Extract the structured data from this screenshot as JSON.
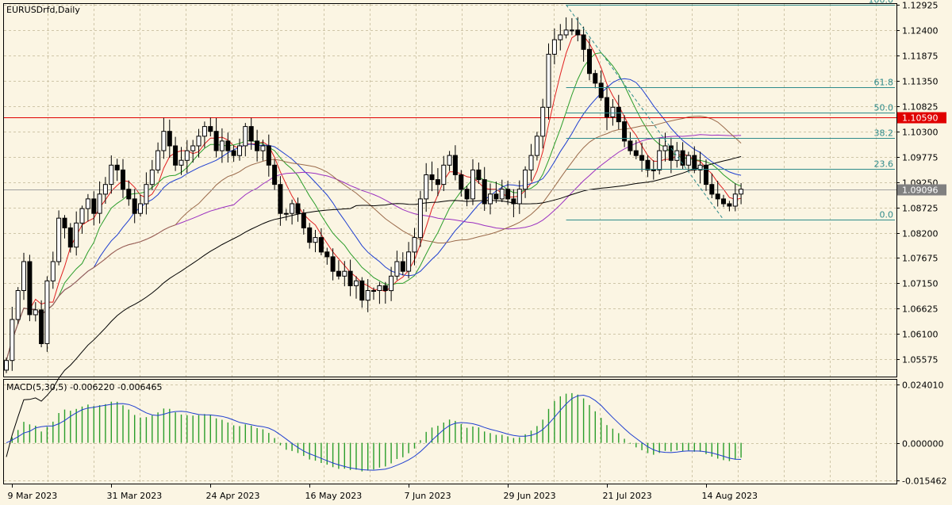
{
  "symbol_label": "EURUSDrfd,Daily",
  "macd_label": "MACD(5,30,5) -0.006220 -0.006465",
  "colors": {
    "background": "#fbf5e3",
    "grid": "#cfc6a8",
    "candle": "#000000",
    "resistance": "#e00000",
    "fib": "#2e8b8b",
    "ma_red": "#e02020",
    "ma_green": "#2a9d2a",
    "ma_blue": "#1f3fd0",
    "ma_purple": "#9a2fc0",
    "ma_brown": "#9a6a4a",
    "ma_black": "#000000",
    "macd_hist": "#2a9d2a",
    "macd_signal": "#1f3fd0",
    "current_tag": "#808080"
  },
  "chart_data": [
    {
      "type": "candlestick",
      "symbol": "EURUSDrfd",
      "timeframe": "Daily",
      "ylim": [
        1.0525,
        1.12925
      ],
      "y_ticks": [
        "1.12925",
        "1.12400",
        "1.11875",
        "1.11350",
        "1.10825",
        "1.10300",
        "1.09775",
        "1.09250",
        "1.08725",
        "1.08200",
        "1.07675",
        "1.07150",
        "1.06625",
        "1.06100",
        "1.05575"
      ],
      "x_ticks": [
        "9 Mar 2023",
        "31 Mar 2023",
        "24 Apr 2023",
        "16 May 2023",
        "7 Jun 2023",
        "29 Jun 2023",
        "21 Jul 2023",
        "14 Aug 2023"
      ],
      "x_tick_index": [
        1,
        18,
        35,
        52,
        69,
        86,
        103,
        120
      ],
      "closes": [
        1.0555,
        1.064,
        1.07,
        1.076,
        1.065,
        1.066,
        1.059,
        1.072,
        1.076,
        1.085,
        1.083,
        1.079,
        1.084,
        1.087,
        1.089,
        1.086,
        1.09,
        1.092,
        1.096,
        1.095,
        1.091,
        1.089,
        1.086,
        1.088,
        1.092,
        1.095,
        1.099,
        1.103,
        1.1,
        1.096,
        1.097,
        1.099,
        1.1,
        1.102,
        1.104,
        1.103,
        1.099,
        1.101,
        1.099,
        1.098,
        1.1,
        1.104,
        1.101,
        1.099,
        1.1,
        1.096,
        1.092,
        1.086,
        1.086,
        1.088,
        1.086,
        1.083,
        1.08,
        1.081,
        1.078,
        1.077,
        1.074,
        1.073,
        1.074,
        1.071,
        1.072,
        1.068,
        1.07,
        1.07,
        1.071,
        1.07,
        1.073,
        1.076,
        1.074,
        1.078,
        1.081,
        1.089,
        1.094,
        1.093,
        1.092,
        1.096,
        1.098,
        1.094,
        1.091,
        1.089,
        1.095,
        1.093,
        1.088,
        1.09,
        1.089,
        1.091,
        1.089,
        1.088,
        1.091,
        1.095,
        1.098,
        1.102,
        1.108,
        1.119,
        1.122,
        1.123,
        1.124,
        1.124,
        1.123,
        1.12,
        1.115,
        1.113,
        1.11,
        1.106,
        1.108,
        1.105,
        1.101,
        1.099,
        1.098,
        1.097,
        1.095,
        1.095,
        1.099,
        1.1,
        1.097,
        1.099,
        1.096,
        1.098,
        1.095,
        1.096,
        1.092,
        1.09,
        1.089,
        1.088,
        1.0875,
        1.09,
        1.091
      ],
      "current_price": "1.09096",
      "resistance_level": "1.10590",
      "fibonacci": {
        "high": 1.12925,
        "low": 1.0847,
        "levels": [
          {
            "label": "100.0",
            "ratio": 1.0
          },
          {
            "label": "61.8",
            "ratio": 0.618
          },
          {
            "label": "50.0",
            "ratio": 0.5
          },
          {
            "label": "38.2",
            "ratio": 0.382
          },
          {
            "label": "23.6",
            "ratio": 0.236
          },
          {
            "label": "0.0",
            "ratio": 0.0
          }
        ]
      },
      "moving_averages": [
        {
          "color_key": "ma_red",
          "period": 5
        },
        {
          "color_key": "ma_green",
          "period": 10
        },
        {
          "color_key": "ma_blue",
          "period": 16
        },
        {
          "color_key": "ma_purple",
          "period": 40
        },
        {
          "color_key": "ma_brown",
          "period": 30
        },
        {
          "color_key": "ma_black",
          "period": 60
        }
      ]
    },
    {
      "type": "bar",
      "indicator": "MACD",
      "params": [
        5,
        30,
        5
      ],
      "values_shown": [
        "-0.006220",
        "-0.006465"
      ],
      "ylim": [
        -0.015462,
        0.02401
      ],
      "y_ticks": [
        "0.024010",
        "0.000000",
        "-0.015462"
      ]
    }
  ]
}
